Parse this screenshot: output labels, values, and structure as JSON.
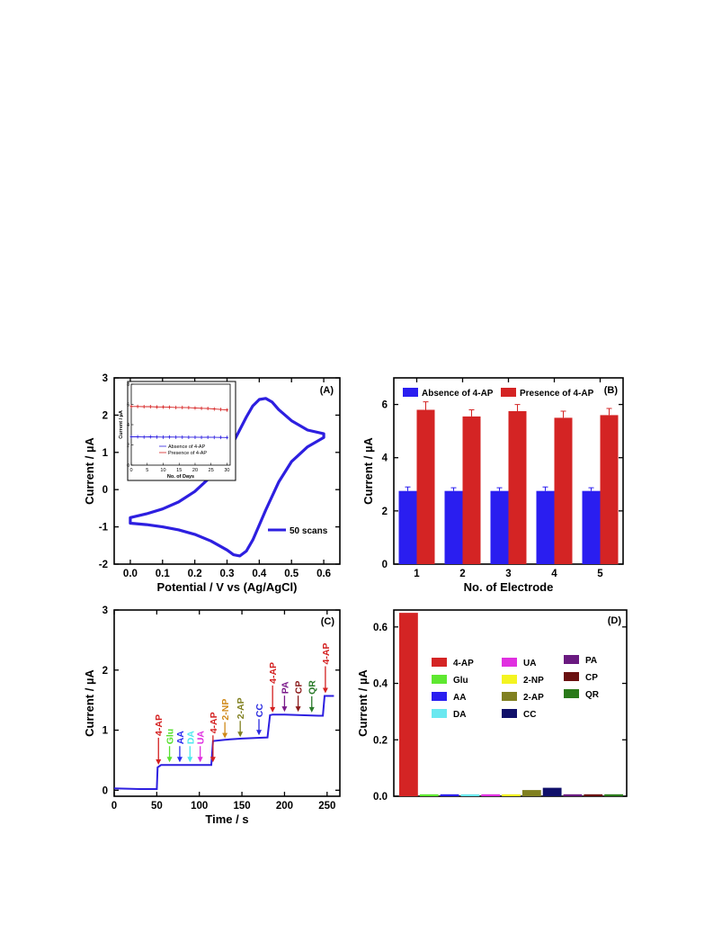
{
  "chart_data": [
    {
      "panel": "(A)",
      "type": "line",
      "xlabel": "Potential / V vs (Ag/AgCl)",
      "ylabel": "Current / µA",
      "xlim": [
        -0.05,
        0.65
      ],
      "ylim": [
        -2,
        3
      ],
      "xticks": [
        "0.0",
        "0.1",
        "0.2",
        "0.3",
        "0.4",
        "0.5",
        "0.6"
      ],
      "yticks": [
        "-2",
        "-1",
        "0",
        "1",
        "2",
        "3"
      ],
      "legend": "50 scans",
      "legend_position": "bottom-right",
      "color": "#2d1fe0",
      "series": [
        {
          "name": "50 scans",
          "forward": {
            "x": [
              0.0,
              0.05,
              0.1,
              0.15,
              0.2,
              0.25,
              0.3,
              0.33,
              0.36,
              0.38,
              0.4,
              0.42,
              0.44,
              0.46,
              0.5,
              0.55,
              0.6
            ],
            "y": [
              -0.75,
              -0.65,
              -0.52,
              -0.33,
              -0.05,
              0.35,
              0.95,
              1.45,
              1.95,
              2.25,
              2.42,
              2.45,
              2.35,
              2.15,
              1.85,
              1.6,
              1.5
            ]
          },
          "reverse": {
            "x": [
              0.6,
              0.55,
              0.5,
              0.46,
              0.42,
              0.4,
              0.38,
              0.36,
              0.34,
              0.32,
              0.3,
              0.25,
              0.2,
              0.15,
              0.1,
              0.05,
              0.0
            ],
            "y": [
              1.4,
              1.15,
              0.75,
              0.2,
              -0.55,
              -0.95,
              -1.35,
              -1.65,
              -1.78,
              -1.75,
              -1.62,
              -1.38,
              -1.2,
              -1.08,
              -1.0,
              -0.94,
              -0.9
            ]
          }
        }
      ],
      "inset": {
        "type": "line",
        "xlabel": "No. of Days",
        "ylabel": "Current / µA",
        "xlim": [
          0,
          31
        ],
        "ylim": [
          0,
          8
        ],
        "xticks": [
          "0",
          "5",
          "10",
          "15",
          "20",
          "25",
          "30"
        ],
        "yticks": [
          "0",
          "2",
          "4",
          "6",
          "8"
        ],
        "series": [
          {
            "name": "Absence of 4-AP",
            "color": "#2d1fe0",
            "x": [
              0,
              2,
              4,
              6,
              8,
              10,
              12,
              14,
              16,
              18,
              20,
              22,
              24,
              26,
              28,
              30
            ],
            "y": [
              2.8,
              2.8,
              2.78,
              2.8,
              2.78,
              2.77,
              2.78,
              2.77,
              2.77,
              2.76,
              2.76,
              2.75,
              2.76,
              2.75,
              2.74,
              2.73
            ]
          },
          {
            "name": "Presence of 4-AP",
            "color": "#d62020",
            "x": [
              0,
              2,
              4,
              6,
              8,
              10,
              12,
              14,
              16,
              18,
              20,
              22,
              24,
              26,
              28,
              30
            ],
            "y": [
              5.8,
              5.8,
              5.78,
              5.78,
              5.75,
              5.75,
              5.72,
              5.7,
              5.7,
              5.68,
              5.65,
              5.62,
              5.6,
              5.55,
              5.5,
              5.45
            ]
          }
        ]
      }
    },
    {
      "panel": "(B)",
      "type": "bar",
      "xlabel": "No. of Electrode",
      "ylabel": "Current / µA",
      "categories": [
        "1",
        "2",
        "3",
        "4",
        "5"
      ],
      "ylim": [
        0,
        7
      ],
      "yticks": [
        "0",
        "2",
        "4",
        "6"
      ],
      "legend_position": "top",
      "series": [
        {
          "name": "Absence of 4-AP",
          "color": "#2a1ef0",
          "values": [
            2.75,
            2.75,
            2.75,
            2.75,
            2.75
          ],
          "errors": [
            0.15,
            0.12,
            0.12,
            0.15,
            0.12
          ]
        },
        {
          "name": "Presence of 4-AP",
          "color": "#d42424",
          "values": [
            5.8,
            5.55,
            5.75,
            5.5,
            5.6
          ],
          "errors": [
            0.3,
            0.25,
            0.25,
            0.25,
            0.25
          ]
        }
      ]
    },
    {
      "panel": "(C)",
      "type": "line",
      "xlabel": "Time / s",
      "ylabel": "Current / µA",
      "xlim": [
        0,
        265
      ],
      "ylim": [
        -0.1,
        3
      ],
      "xticks": [
        "0",
        "50",
        "100",
        "150",
        "200",
        "250"
      ],
      "yticks": [
        "0",
        "1",
        "2",
        "3"
      ],
      "color": "#2d1fe0",
      "x": [
        0,
        30,
        50,
        51,
        55,
        80,
        110,
        114,
        116,
        130,
        150,
        165,
        180,
        183,
        186,
        200,
        220,
        240,
        245,
        247,
        250,
        258
      ],
      "y": [
        0.03,
        0.02,
        0.02,
        0.38,
        0.42,
        0.42,
        0.42,
        0.42,
        0.82,
        0.84,
        0.86,
        0.87,
        0.88,
        1.25,
        1.26,
        1.26,
        1.25,
        1.24,
        1.24,
        1.57,
        1.57,
        1.57
      ],
      "annotations": [
        {
          "label": "4-AP",
          "x": 52,
          "color": "#d42020"
        },
        {
          "label": "Glu",
          "x": 65,
          "color": "#5ae030"
        },
        {
          "label": "AA",
          "x": 77,
          "color": "#2a2af0"
        },
        {
          "label": "DA",
          "x": 89,
          "color": "#4ee8ee"
        },
        {
          "label": "UA",
          "x": 101,
          "color": "#e030e0"
        },
        {
          "label": "4-AP",
          "x": 116,
          "color": "#d42020"
        },
        {
          "label": "2-NP",
          "x": 130,
          "color": "#d08a1a"
        },
        {
          "label": "2-AP",
          "x": 148,
          "color": "#808020"
        },
        {
          "label": "CC",
          "x": 170,
          "color": "#2a2ae0"
        },
        {
          "label": "4-AP",
          "x": 186,
          "color": "#d42020"
        },
        {
          "label": "PA",
          "x": 200,
          "color": "#7a1a8a"
        },
        {
          "label": "CP",
          "x": 216,
          "color": "#8a1a1a"
        },
        {
          "label": "QR",
          "x": 232,
          "color": "#2a7a2a"
        },
        {
          "label": "4-AP",
          "x": 248,
          "color": "#d42020"
        }
      ]
    },
    {
      "panel": "(D)",
      "type": "bar",
      "ylabel": "Current / µA",
      "ylim": [
        0,
        0.66
      ],
      "yticks": [
        "0.0",
        "0.2",
        "0.4",
        "0.6"
      ],
      "categories": [
        "4-AP",
        "Glu",
        "AA",
        "DA",
        "UA",
        "2-NP",
        "2-AP",
        "CC",
        "PA",
        "CP",
        "QR"
      ],
      "values": [
        0.65,
        0.007,
        0.007,
        0.007,
        0.007,
        0.007,
        0.022,
        0.03,
        0.007,
        0.007,
        0.007
      ],
      "colors": [
        "#d42424",
        "#5ee830",
        "#2a1ef0",
        "#6ae8f0",
        "#e030e0",
        "#f4f420",
        "#808020",
        "#10106a",
        "#6a1a80",
        "#6a1010",
        "#2a7a1a"
      ],
      "legend_position": "center"
    }
  ]
}
